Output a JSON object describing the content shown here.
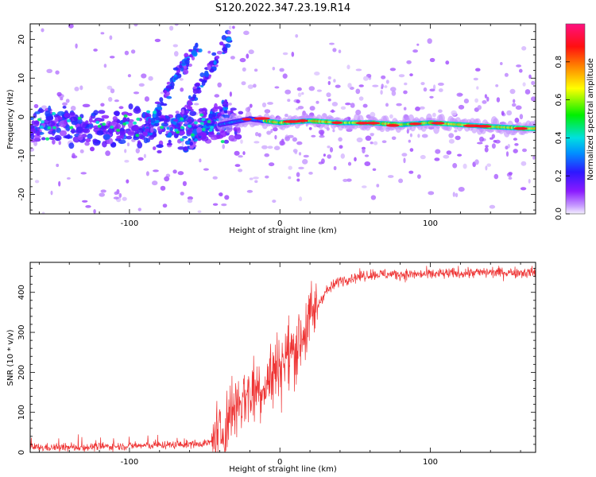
{
  "figure": {
    "title": "S120.2022.347.23.19.R14"
  },
  "chart_data": [
    {
      "type": "heatmap",
      "xlabel": "Height of straight line (km)",
      "ylabel": "Frequency (Hz)",
      "xlim": [
        -166,
        170
      ],
      "ylim": [
        -25,
        24
      ],
      "xticks": [
        -100,
        0,
        100
      ],
      "yticks": [
        -20,
        -10,
        0,
        10,
        20
      ],
      "colormap": "rainbow (violet-blue-cyan-green-yellow-red-magenta)",
      "colorbar": {
        "label": "Normalized spectral amplitude",
        "range": [
          0.0,
          1.0
        ],
        "ticks": [
          0.0,
          0.2,
          0.4,
          0.6,
          0.8
        ]
      },
      "features": {
        "carrier_ridge_frequency_hz": [
          [
            -166,
            -2
          ],
          [
            -140,
            -2
          ],
          [
            -110,
            -3
          ],
          [
            -80,
            -2
          ],
          [
            -60,
            -2
          ],
          [
            -40,
            -2
          ],
          [
            -20,
            -0.5
          ],
          [
            0,
            -1.5
          ],
          [
            20,
            -1
          ],
          [
            40,
            -1.5
          ],
          [
            60,
            -1.5
          ],
          [
            80,
            -2
          ],
          [
            100,
            -1.5
          ],
          [
            120,
            -2
          ],
          [
            140,
            -2.5
          ],
          [
            165,
            -3
          ]
        ],
        "oblique_streaks_hz": [
          [
            [
              -90,
              -5
            ],
            [
              -70,
              10
            ],
            [
              -55,
              18
            ]
          ],
          [
            [
              -75,
              -6
            ],
            [
              -58,
              5
            ],
            [
              -45,
              13
            ],
            [
              -33,
              21
            ]
          ],
          [
            [
              -62,
              -8
            ],
            [
              -48,
              -2
            ],
            [
              -35,
              3
            ]
          ]
        ]
      }
    },
    {
      "type": "line",
      "xlabel": "Height of straight line (km)",
      "ylabel": "SNR (10 * v/v)",
      "xlim": [
        -166,
        170
      ],
      "ylim": [
        0,
        475
      ],
      "xticks": [
        -100,
        0,
        100
      ],
      "yticks": [
        0,
        100,
        200,
        300,
        400
      ],
      "series": [
        {
          "color": "#ee3333",
          "trend_x": [
            -166,
            -140,
            -110,
            -80,
            -60,
            -45,
            -40,
            -35,
            -30,
            -20,
            -10,
            0,
            10,
            20,
            30,
            40,
            60,
            80,
            100,
            120,
            140,
            170
          ],
          "trend_y": [
            12,
            12,
            15,
            18,
            20,
            25,
            40,
            80,
            120,
            150,
            170,
            220,
            260,
            330,
            400,
            430,
            445,
            445,
            445,
            448,
            450,
            450
          ]
        }
      ]
    }
  ]
}
